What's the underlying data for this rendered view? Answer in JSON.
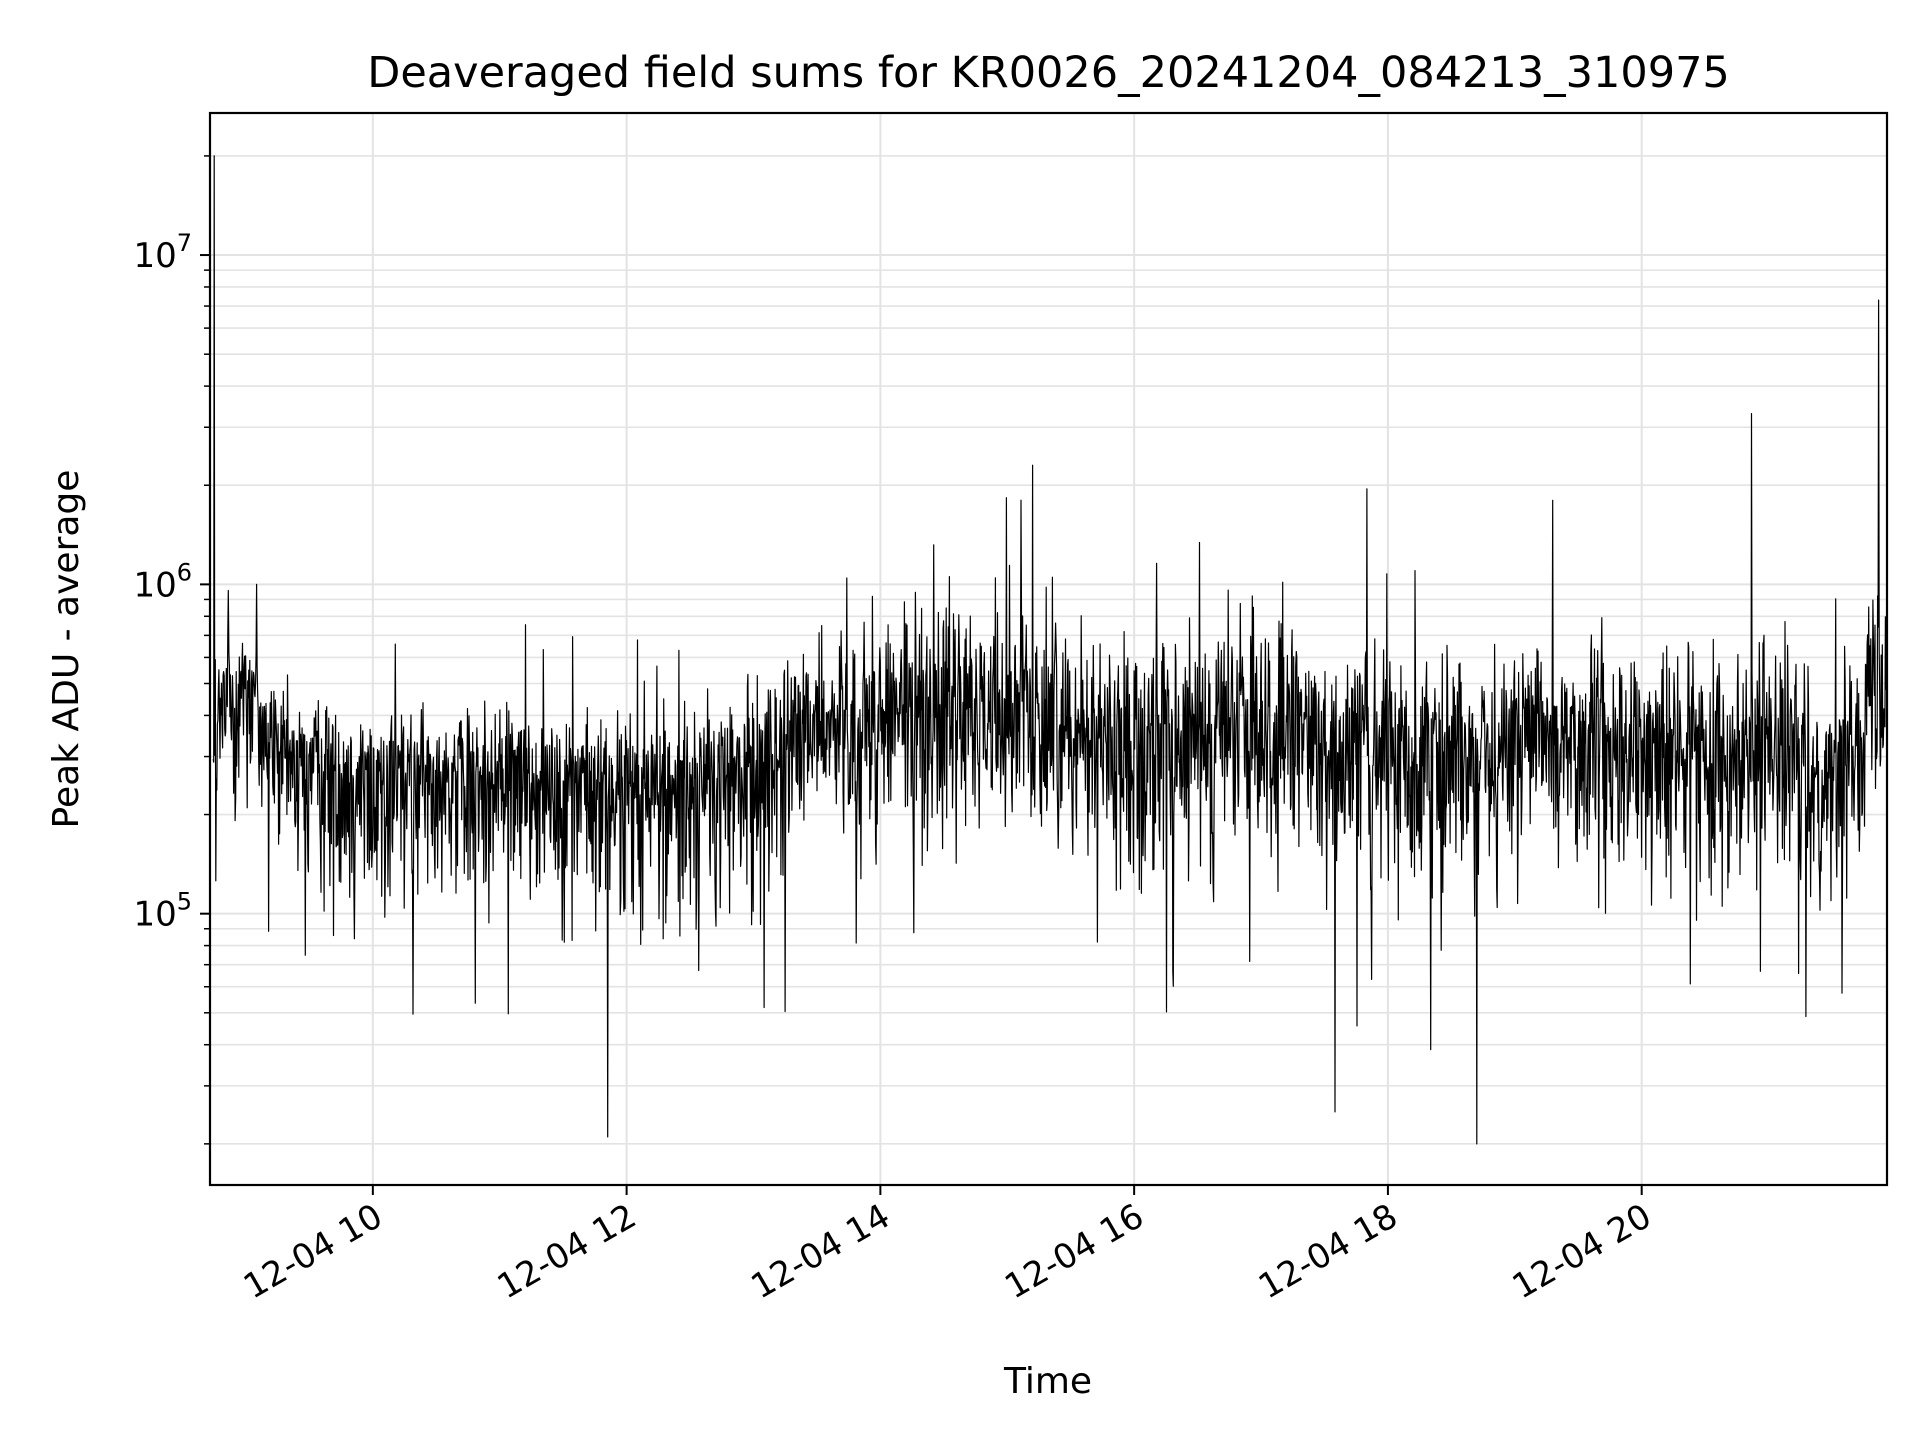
{
  "chart_data": {
    "type": "line",
    "title": "Deaveraged field sums for KR0026_20241204_084213_310975",
    "xlabel": "Time",
    "ylabel": "Peak ADU - average",
    "xscale": "time",
    "yscale": "log",
    "xlim": [
      "12-04 08:43",
      "12-04 21:56"
    ],
    "ylim": [
      15000,
      27000000
    ],
    "x_ticks": [
      "12-04 10",
      "12-04 12",
      "12-04 14",
      "12-04 16",
      "12-04 18",
      "12-04 20"
    ],
    "y_ticks": [
      {
        "base": "10",
        "exp": "5",
        "value": 100000
      },
      {
        "base": "10",
        "exp": "6",
        "value": 1000000
      },
      {
        "base": "10",
        "exp": "7",
        "value": 10000000
      }
    ],
    "grid": true,
    "legend": "none",
    "series": [
      {
        "color": "#000000",
        "description_of_points": "dense noisy trace, ~1 sample per ~15 s; envelope values below",
        "x": [
          "08:45",
          "09:00",
          "09:15",
          "09:30",
          "09:45",
          "10:00",
          "10:30",
          "11:00",
          "11:30",
          "12:00",
          "12:30",
          "13:00",
          "13:30",
          "14:00",
          "14:30",
          "15:00",
          "15:30",
          "16:00",
          "16:30",
          "17:00",
          "17:30",
          "18:00",
          "18:30",
          "19:00",
          "19:30",
          "20:00",
          "20:30",
          "21:00",
          "21:30",
          "21:55"
        ],
        "median": [
          350000,
          550000,
          300000,
          280000,
          270000,
          260000,
          270000,
          260000,
          250000,
          240000,
          240000,
          280000,
          380000,
          380000,
          420000,
          400000,
          380000,
          320000,
          340000,
          360000,
          330000,
          320000,
          310000,
          340000,
          330000,
          300000,
          320000,
          320000,
          250000,
          550000
        ],
        "upper": [
          900000,
          950000,
          620000,
          560000,
          500000,
          510000,
          500000,
          560000,
          520000,
          480000,
          580000,
          600000,
          1100000,
          1200000,
          1300000,
          1400000,
          1100000,
          900000,
          1000000,
          1200000,
          900000,
          800000,
          800000,
          900000,
          900000,
          900000,
          900000,
          1000000,
          800000,
          1600000
        ],
        "lower": [
          150000,
          140000,
          110000,
          80000,
          60000,
          55000,
          70000,
          70000,
          70000,
          50000,
          45000,
          60000,
          120000,
          100000,
          110000,
          120000,
          110000,
          80000,
          80000,
          100000,
          80000,
          70000,
          60000,
          80000,
          80000,
          70000,
          80000,
          90000,
          70000,
          180000
        ]
      }
    ],
    "notable_spikes": [
      {
        "x": "08:45",
        "y": 20000000
      },
      {
        "x": "09:05",
        "y": 1000000
      },
      {
        "x": "11:51",
        "y": 21000
      },
      {
        "x": "15:12",
        "y": 2300000
      },
      {
        "x": "17:35",
        "y": 25000
      },
      {
        "x": "17:50",
        "y": 1950000
      },
      {
        "x": "18:42",
        "y": 20000
      },
      {
        "x": "19:18",
        "y": 1800000
      },
      {
        "x": "20:52",
        "y": 3300000
      },
      {
        "x": "21:52",
        "y": 7300000
      }
    ]
  }
}
